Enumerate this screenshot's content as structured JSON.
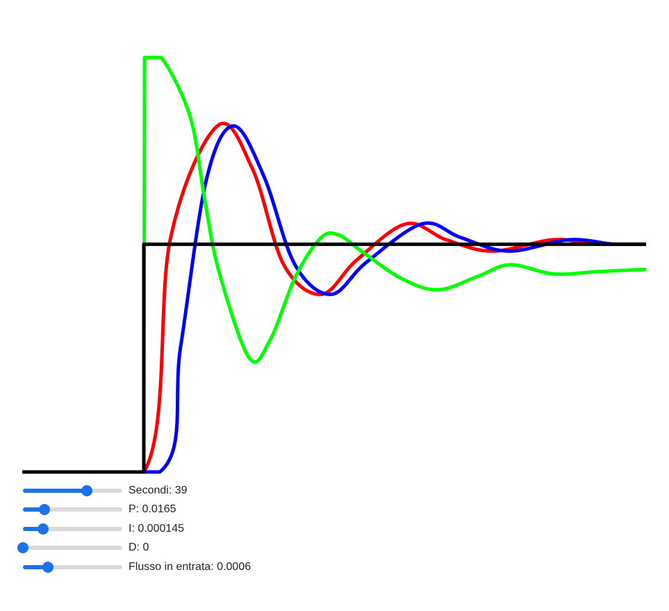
{
  "chart_data": {
    "type": "line",
    "xlim": [
      0,
      39
    ],
    "ylim": [
      0,
      1.85
    ],
    "series": [
      {
        "color": "#ff0000",
        "points": [
          [
            0,
            0
          ],
          [
            7.6,
            0
          ],
          [
            9.25,
            1.02
          ],
          [
            12.2,
            1.52
          ],
          [
            14.4,
            1.33
          ],
          [
            16.35,
            0.91
          ],
          [
            18.7,
            0.78
          ],
          [
            20.9,
            0.93
          ],
          [
            24,
            1.09
          ],
          [
            26.5,
            1.02
          ],
          [
            29.4,
            0.97
          ],
          [
            33.2,
            1.02
          ],
          [
            36,
            1.0
          ],
          [
            39,
            1.0
          ]
        ]
      },
      {
        "color": "#0000ff",
        "points": [
          [
            0,
            0
          ],
          [
            8.6,
            0
          ],
          [
            9.9,
            0.55
          ],
          [
            11.5,
            1.28
          ],
          [
            13.2,
            1.52
          ],
          [
            15.1,
            1.3
          ],
          [
            17.05,
            0.91
          ],
          [
            19.3,
            0.78
          ],
          [
            21.5,
            0.92
          ],
          [
            25,
            1.09
          ],
          [
            27.4,
            1.03
          ],
          [
            30.4,
            0.97
          ],
          [
            34.2,
            1.02
          ],
          [
            37,
            1.0
          ],
          [
            39,
            1.0
          ]
        ]
      },
      {
        "color": "#00ff00",
        "points": [
          [
            0,
            0
          ],
          [
            7.6,
            0
          ],
          [
            7.65,
            1.82
          ],
          [
            8.7,
            1.82
          ],
          [
            10.5,
            1.56
          ],
          [
            11.4,
            1.2
          ],
          [
            12.3,
            0.88
          ],
          [
            14.2,
            0.5
          ],
          [
            15.5,
            0.58
          ],
          [
            17.1,
            0.86
          ],
          [
            18.7,
            1.03
          ],
          [
            19.8,
            1.04
          ],
          [
            21.2,
            0.97
          ],
          [
            23.7,
            0.85
          ],
          [
            26,
            0.8
          ],
          [
            28.5,
            0.86
          ],
          [
            30.5,
            0.91
          ],
          [
            33.2,
            0.87
          ],
          [
            36,
            0.88
          ],
          [
            39,
            0.89
          ]
        ]
      },
      {
        "color": "#000000",
        "points": [
          [
            0,
            0
          ],
          [
            7.6,
            0
          ],
          [
            7.6,
            1
          ],
          [
            39,
            1
          ]
        ]
      }
    ]
  },
  "controls": {
    "seconds": {
      "label": "Secondi: 39",
      "value_fraction": 0.64
    },
    "p": {
      "label": "P: 0.0165",
      "value_fraction": 0.22
    },
    "i": {
      "label": "I: 0.000145",
      "value_fraction": 0.2
    },
    "d": {
      "label": "D: 0",
      "value_fraction": 0.0
    },
    "inflow": {
      "label": "Flusso in entrata: 0.0006",
      "value_fraction": 0.25
    }
  },
  "colors": {
    "accent": "#1a73e8",
    "track": "#d9d9d9"
  }
}
